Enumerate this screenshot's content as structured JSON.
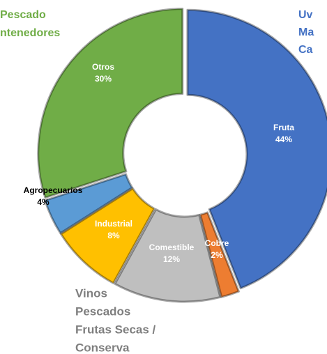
{
  "chart_data": {
    "type": "donut",
    "categories": [
      "Fruta",
      "Cobre",
      "Comestible",
      "Industrial",
      "Agropecuarios",
      "Otros"
    ],
    "values": [
      44,
      2,
      12,
      8,
      4,
      30
    ],
    "value_labels": [
      "44%",
      "2%",
      "12%",
      "8%",
      "4%",
      "30%"
    ],
    "colors": [
      "#4472c4",
      "#ed7d31",
      "#bfbfbf",
      "#ffc000",
      "#5b9bd5",
      "#70ad47"
    ],
    "label_colors": [
      "#ffffff",
      "#ffffff",
      "#ffffff",
      "#ffffff",
      "#000000",
      "#ffffff"
    ],
    "annotations": [
      {
        "lines": [
          "Pescado",
          "ntenedores"
        ],
        "color": "#70ad47"
      },
      {
        "lines": [
          "Uv",
          "Ma",
          "Ca"
        ],
        "color": "#4472c4"
      },
      {
        "lines": [
          "Vinos",
          "Pescados",
          "Frutas Secas /",
          "Conserva"
        ],
        "color": "#7f7f7f"
      }
    ]
  }
}
